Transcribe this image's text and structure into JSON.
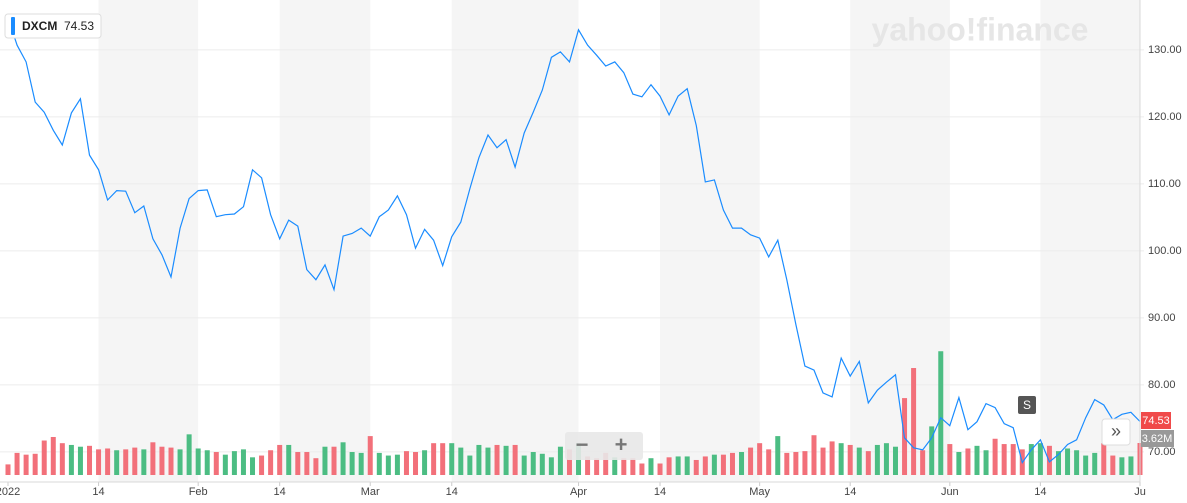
{
  "chart_data": {
    "type": "line",
    "brand": "yahoo!finance",
    "event_marker": "S",
    "controls": [
      "−",
      "+",
      "»"
    ],
    "series": [
      {
        "name": "DXCM",
        "color": "#1a8cff",
        "values": [
          134.8,
          130.7,
          128.2,
          122.2,
          120.7,
          118.0,
          115.8,
          120.6,
          122.7,
          114.3,
          112.1,
          107.6,
          109.0,
          108.9,
          105.7,
          106.7,
          101.8,
          99.4,
          96.1,
          103.4,
          107.8,
          109.0,
          109.1,
          105.1,
          105.4,
          105.5,
          106.6,
          112.1,
          110.9,
          105.4,
          101.8,
          104.6,
          103.7,
          97.2,
          95.7,
          97.9,
          94.2,
          102.2,
          102.6,
          103.4,
          102.2,
          105.1,
          106.1,
          108.2,
          105.4,
          100.4,
          103.2,
          101.6,
          97.8,
          102.1,
          104.3,
          109.3,
          113.9,
          117.3,
          115.4,
          116.6,
          112.5,
          117.6,
          120.7,
          124.0,
          128.9,
          129.7,
          128.2,
          133.0,
          130.7,
          129.2,
          127.6,
          128.2,
          126.6,
          123.4,
          123.0,
          124.8,
          123.1,
          120.3,
          123.1,
          124.2,
          118.7,
          110.3,
          110.6,
          106.1,
          103.4,
          103.4,
          102.4,
          101.9,
          99.1,
          101.6,
          95.7,
          89.0,
          82.8,
          82.2,
          78.8,
          78.2,
          84.0,
          81.3,
          83.5,
          77.3,
          79.2,
          80.4,
          81.5,
          72.1,
          70.6,
          70.3,
          72.1,
          75.1,
          73.9,
          78.1,
          73.3,
          74.5,
          77.2,
          76.6,
          74.2,
          73.6,
          68.4,
          70.3,
          71.8,
          68.5,
          69.6,
          71.1,
          71.8,
          75.1,
          77.8,
          77.0,
          74.8,
          75.6,
          75.9,
          74.53
        ]
      }
    ],
    "xlim": [
      0,
      125
    ],
    "xticks": [
      {
        "value": 0,
        "label": "2022"
      },
      {
        "value": 10,
        "label": "14"
      },
      {
        "value": 21,
        "label": "Feb"
      },
      {
        "value": 30,
        "label": "14"
      },
      {
        "value": 40,
        "label": "Mar"
      },
      {
        "value": 49,
        "label": "14"
      },
      {
        "value": 63,
        "label": "Apr"
      },
      {
        "value": 72,
        "label": "14"
      },
      {
        "value": 83,
        "label": "May"
      },
      {
        "value": 93,
        "label": "14"
      },
      {
        "value": 104,
        "label": "Jun"
      },
      {
        "value": 114,
        "label": "14"
      },
      {
        "value": 125,
        "label": "Ju"
      }
    ],
    "ylim": [
      65.5,
      136.7
    ],
    "yticks": [
      {
        "value": 70,
        "label": "70.00"
      },
      {
        "value": 80,
        "label": "80.00"
      },
      {
        "value": 90,
        "label": "90.00"
      },
      {
        "value": 100,
        "label": "100.00"
      },
      {
        "value": 110,
        "label": "110.00"
      },
      {
        "value": 120,
        "label": "120.00"
      },
      {
        "value": 130,
        "label": "130.00"
      }
    ],
    "volume": {
      "up_color": "#4cbd83",
      "down_color": "#f2707a",
      "ylim": [
        0,
        50
      ],
      "values": [
        1.2,
        2.5,
        2.3,
        2.4,
        3.9,
        4.3,
        3.6,
        3.4,
        3.2,
        3.3,
        2.9,
        3.0,
        2.8,
        2.9,
        3.1,
        2.9,
        3.7,
        3.2,
        3.1,
        2.9,
        4.6,
        3.0,
        2.8,
        2.6,
        2.3,
        2.7,
        2.9,
        2.0,
        2.2,
        2.8,
        3.4,
        3.4,
        2.6,
        2.6,
        1.9,
        3.2,
        3.2,
        3.7,
        2.6,
        2.5,
        4.4,
        2.5,
        2.2,
        2.3,
        2.7,
        2.6,
        2.8,
        3.6,
        3.6,
        3.6,
        3.1,
        2.2,
        3.4,
        3.1,
        3.4,
        3.3,
        3.4,
        2.2,
        2.6,
        2.4,
        2.0,
        3.2,
        2.9,
        3.6,
        2.1,
        1.9,
        2.5,
        2.0,
        1.9,
        1.9,
        1.3,
        1.9,
        1.3,
        2.0,
        2.1,
        2.1,
        1.7,
        2.1,
        2.3,
        2.3,
        2.5,
        2.6,
        3.1,
        3.6,
        2.9,
        4.4,
        2.5,
        2.6,
        2.7,
        4.5,
        3.1,
        3.8,
        3.6,
        3.4,
        3.1,
        2.7,
        3.4,
        3.6,
        3.2,
        8.7,
        12.1,
        2.8,
        5.5,
        14.0,
        3.5,
        2.6,
        3.0,
        3.3,
        2.8,
        4.1,
        3.5,
        3.5,
        2.9,
        3.5,
        3.6,
        3.3,
        2.7,
        3.0,
        2.8,
        2.2,
        2.5,
        3.6,
        2.2,
        2.0,
        2.1,
        3.62
      ],
      "value_labels": [
        null,
        null,
        null,
        null,
        null,
        null,
        null,
        null,
        null,
        null,
        null,
        null,
        null,
        null,
        null,
        null,
        null,
        null,
        null,
        null,
        null,
        null,
        null,
        null,
        null,
        null,
        null,
        null,
        null,
        null,
        null,
        null,
        null,
        null,
        null,
        null,
        null,
        null,
        null,
        null,
        null,
        null,
        null,
        null,
        null,
        null,
        null,
        null,
        null,
        null,
        null,
        null,
        null,
        null,
        null,
        null,
        null,
        null,
        null,
        null,
        null,
        null,
        null,
        null,
        null,
        null,
        null,
        null,
        null,
        null,
        null,
        null,
        null,
        null,
        null,
        null,
        null,
        null,
        null,
        null,
        null,
        null,
        null,
        null,
        null,
        null,
        null,
        null,
        null,
        null,
        null,
        null,
        null,
        null,
        null,
        null,
        null,
        null,
        null,
        null,
        null,
        null,
        null,
        null,
        null,
        null,
        null,
        null,
        null,
        null,
        null,
        null,
        null,
        null,
        null,
        null,
        null,
        null,
        null,
        null,
        null,
        null,
        null,
        null,
        null,
        "3.62M"
      ]
    }
  }
}
